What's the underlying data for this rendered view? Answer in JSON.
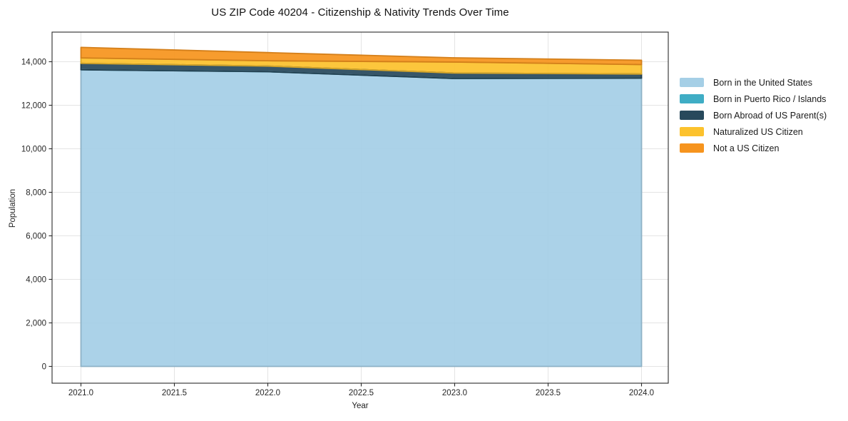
{
  "chart_data": {
    "type": "area",
    "stacked": true,
    "title": "US ZIP Code 40204 - Citizenship & Nativity Trends Over Time",
    "xlabel": "Year",
    "ylabel": "Population",
    "x": [
      2021,
      2022,
      2023,
      2024
    ],
    "series": [
      {
        "name": "Born in the United States",
        "color": "#a5cfe6",
        "values": [
          13630,
          13540,
          13230,
          13245
        ]
      },
      {
        "name": "Born in Puerto Rico / Islands",
        "color": "#3fadc5",
        "values": [
          0,
          0,
          0,
          0
        ]
      },
      {
        "name": "Born Abroad of US Parent(s)",
        "color": "#28495c",
        "values": [
          295,
          260,
          250,
          190
        ]
      },
      {
        "name": "Naturalized US Citizen",
        "color": "#fcc22d",
        "values": [
          250,
          245,
          505,
          435
        ]
      },
      {
        "name": "Not a US Citizen",
        "color": "#f6941e",
        "values": [
          485,
          375,
          195,
          200
        ]
      }
    ],
    "x_ticks": [
      {
        "v": 2021.0,
        "label": "2021.0"
      },
      {
        "v": 2021.5,
        "label": "2021.5"
      },
      {
        "v": 2022.0,
        "label": "2022.0"
      },
      {
        "v": 2022.5,
        "label": "2022.5"
      },
      {
        "v": 2023.0,
        "label": "2023.0"
      },
      {
        "v": 2023.5,
        "label": "2023.5"
      },
      {
        "v": 2024.0,
        "label": "2024.0"
      }
    ],
    "y_ticks": [
      {
        "v": 0,
        "label": "0"
      },
      {
        "v": 2000,
        "label": "2,000"
      },
      {
        "v": 4000,
        "label": "4,000"
      },
      {
        "v": 6000,
        "label": "6,000"
      },
      {
        "v": 8000,
        "label": "8,000"
      },
      {
        "v": 10000,
        "label": "10,000"
      },
      {
        "v": 12000,
        "label": "12,000"
      },
      {
        "v": 14000,
        "label": "14,000"
      }
    ],
    "xlim": [
      2020.85,
      2024.15
    ],
    "ylim": [
      -730,
      15350
    ],
    "grid": true,
    "legend_position": "right",
    "grid_color": "#e4e4e4",
    "spine_color": "#2a2a2a"
  }
}
